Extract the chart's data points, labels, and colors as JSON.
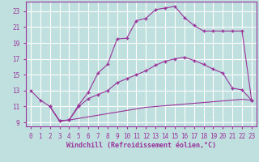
{
  "background_color": "#c0e0e0",
  "grid_color": "#ffffff",
  "line_color": "#993399",
  "xlabel": "Windchill (Refroidissement éolien,°C)",
  "xlim": [
    -0.5,
    23.5
  ],
  "ylim": [
    8.5,
    24.2
  ],
  "yticks": [
    9,
    11,
    13,
    15,
    17,
    19,
    21,
    23
  ],
  "xticks": [
    0,
    1,
    2,
    3,
    4,
    5,
    6,
    7,
    8,
    9,
    10,
    11,
    12,
    13,
    14,
    15,
    16,
    17,
    18,
    19,
    20,
    21,
    22,
    23
  ],
  "line1_x": [
    0,
    1,
    2,
    3,
    4,
    5,
    6,
    7,
    8,
    9,
    10,
    11,
    12,
    13,
    14,
    15,
    16,
    17,
    18,
    19,
    20,
    21,
    22,
    23
  ],
  "line1_y": [
    13.0,
    11.8,
    11.0,
    9.2,
    9.3,
    11.2,
    12.8,
    15.2,
    16.3,
    19.5,
    19.6,
    21.8,
    22.1,
    23.2,
    23.4,
    23.6,
    22.2,
    21.2,
    20.5,
    20.5,
    20.5,
    20.5,
    20.5,
    11.8
  ],
  "line2_x": [
    2,
    3,
    4,
    5,
    6,
    7,
    8,
    9,
    10,
    11,
    12,
    13,
    14,
    15,
    16,
    17,
    18,
    19,
    20,
    21,
    22,
    23
  ],
  "line2_y": [
    11.0,
    9.2,
    9.3,
    11.0,
    12.0,
    12.5,
    13.0,
    14.0,
    14.5,
    15.0,
    15.5,
    16.2,
    16.7,
    17.0,
    17.2,
    16.8,
    16.3,
    15.7,
    15.2,
    13.3,
    13.1,
    11.8
  ],
  "line3_x": [
    2,
    3,
    4,
    5,
    6,
    7,
    8,
    9,
    10,
    11,
    12,
    13,
    14,
    15,
    16,
    17,
    18,
    19,
    20,
    21,
    22,
    23
  ],
  "line3_y": [
    11.0,
    9.2,
    9.3,
    9.5,
    9.7,
    9.9,
    10.1,
    10.3,
    10.5,
    10.7,
    10.9,
    11.0,
    11.1,
    11.2,
    11.3,
    11.4,
    11.5,
    11.6,
    11.7,
    11.8,
    11.9,
    11.8
  ],
  "marker": "+",
  "marker_size": 3,
  "font_size_tick": 5.5,
  "font_size_label": 6
}
